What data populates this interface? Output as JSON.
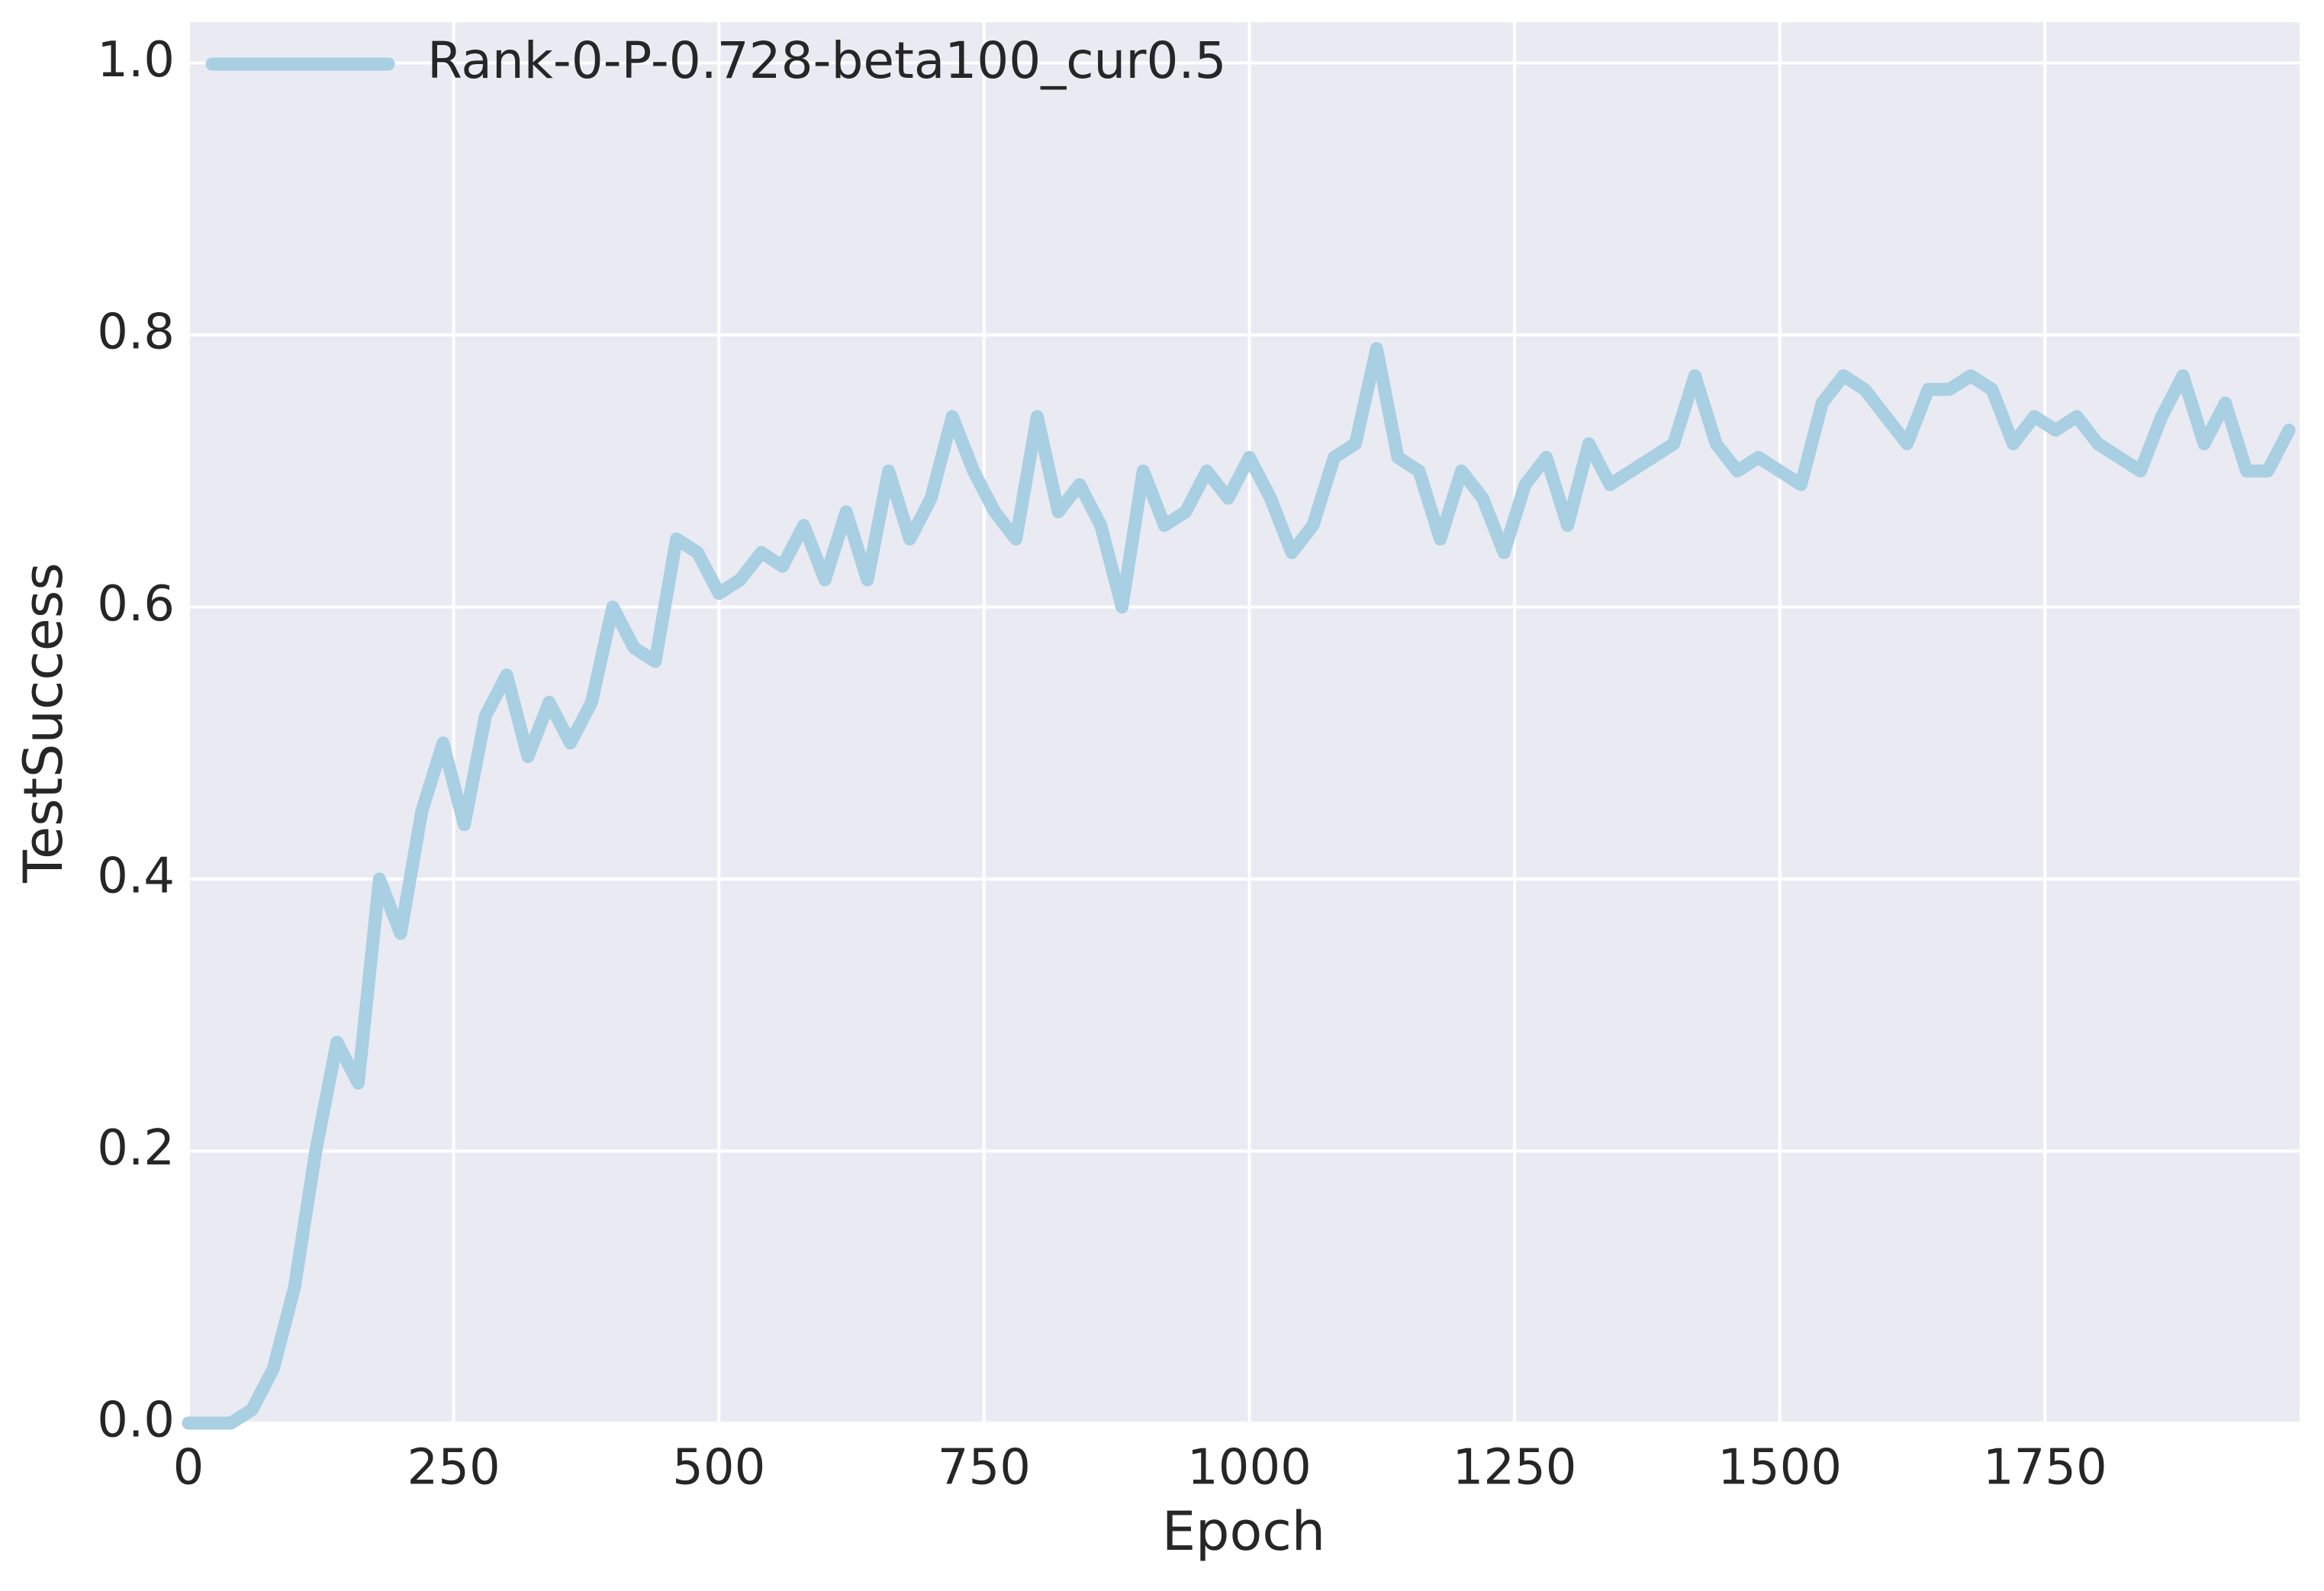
{
  "chart_data": {
    "type": "line",
    "xlabel": "Epoch",
    "ylabel": "TestSuccess",
    "x": [
      0,
      20,
      40,
      60,
      80,
      100,
      120,
      140,
      160,
      180,
      200,
      220,
      240,
      260,
      280,
      300,
      320,
      340,
      360,
      380,
      400,
      420,
      440,
      460,
      480,
      500,
      520,
      540,
      560,
      580,
      600,
      620,
      640,
      660,
      680,
      700,
      720,
      740,
      760,
      780,
      800,
      820,
      840,
      860,
      880,
      900,
      920,
      940,
      960,
      980,
      1000,
      1020,
      1040,
      1060,
      1080,
      1100,
      1120,
      1140,
      1160,
      1180,
      1200,
      1220,
      1240,
      1260,
      1280,
      1300,
      1320,
      1340,
      1360,
      1380,
      1400,
      1420,
      1440,
      1460,
      1480,
      1500,
      1520,
      1540,
      1560,
      1580,
      1600,
      1620,
      1640,
      1660,
      1680,
      1700,
      1720,
      1740,
      1760,
      1780,
      1800,
      1820,
      1840,
      1860,
      1880,
      1900,
      1920,
      1940,
      1960,
      1980
    ],
    "series": [
      {
        "name": "Rank-0-P-0.728-beta100_cur0.5",
        "color": "#a8cfe2",
        "values": [
          0,
          0,
          0,
          0.01,
          0.04,
          0.1,
          0.2,
          0.28,
          0.25,
          0.4,
          0.36,
          0.45,
          0.5,
          0.44,
          0.52,
          0.55,
          0.49,
          0.53,
          0.5,
          0.53,
          0.6,
          0.57,
          0.56,
          0.65,
          0.64,
          0.61,
          0.62,
          0.64,
          0.63,
          0.66,
          0.62,
          0.67,
          0.62,
          0.7,
          0.65,
          0.68,
          0.74,
          0.7,
          0.67,
          0.65,
          0.74,
          0.67,
          0.69,
          0.66,
          0.6,
          0.7,
          0.66,
          0.67,
          0.7,
          0.68,
          0.71,
          0.68,
          0.64,
          0.66,
          0.71,
          0.72,
          0.79,
          0.71,
          0.7,
          0.65,
          0.7,
          0.68,
          0.64,
          0.69,
          0.71,
          0.66,
          0.72,
          0.69,
          0.7,
          0.71,
          0.72,
          0.77,
          0.72,
          0.7,
          0.71,
          0.7,
          0.69,
          0.75,
          0.77,
          0.76,
          0.74,
          0.72,
          0.76,
          0.76,
          0.77,
          0.76,
          0.72,
          0.74,
          0.73,
          0.74,
          0.72,
          0.71,
          0.7,
          0.74,
          0.77,
          0.72,
          0.75,
          0.7,
          0.7,
          0.73
        ]
      }
    ],
    "xlim": [
      0,
      1990
    ],
    "ylim": [
      0,
      1.03
    ],
    "xticks": [
      0,
      250,
      500,
      750,
      1000,
      1250,
      1500,
      1750
    ],
    "yticks": [
      {
        "value": 0,
        "label": "0.0"
      },
      0.2,
      0.4,
      0.6,
      0.8,
      {
        "value": 1,
        "label": "1.0"
      }
    ],
    "grid": true,
    "legend": "upper left"
  }
}
